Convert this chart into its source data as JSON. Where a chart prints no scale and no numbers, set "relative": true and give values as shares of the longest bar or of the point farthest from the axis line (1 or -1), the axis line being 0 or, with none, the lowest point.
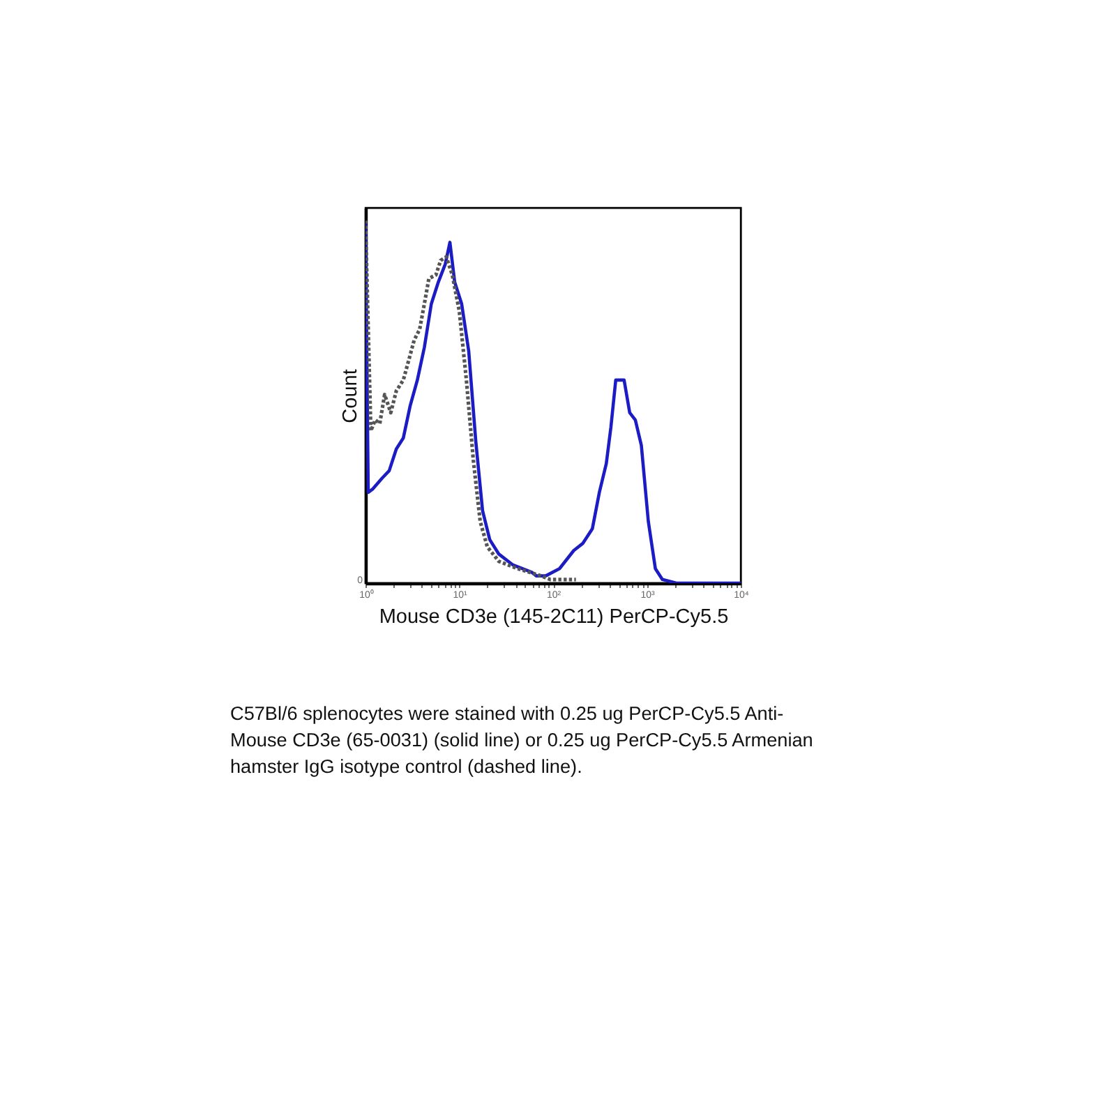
{
  "chart_data": {
    "type": "line",
    "relative": true,
    "log": "x",
    "xlabel": "Mouse CD3e (145-2C11) PerCP-Cy5.5",
    "ylabel": "Count",
    "xlim": [
      1,
      10000
    ],
    "xticks": [
      {
        "value": 1,
        "label": "10⁰"
      },
      {
        "value": 2,
        "label": null
      },
      {
        "value": 3,
        "label": null
      },
      {
        "value": 4,
        "label": null
      },
      {
        "value": 5,
        "label": null
      },
      {
        "value": 6,
        "label": null
      },
      {
        "value": 7,
        "label": null
      },
      {
        "value": 8,
        "label": null
      },
      {
        "value": 9,
        "label": null
      },
      {
        "value": 10,
        "label": "10¹"
      },
      {
        "value": 20,
        "label": null
      },
      {
        "value": 30,
        "label": null
      },
      {
        "value": 40,
        "label": null
      },
      {
        "value": 50,
        "label": null
      },
      {
        "value": 60,
        "label": null
      },
      {
        "value": 70,
        "label": null
      },
      {
        "value": 80,
        "label": null
      },
      {
        "value": 90,
        "label": null
      },
      {
        "value": 100,
        "label": "10²"
      },
      {
        "value": 200,
        "label": null
      },
      {
        "value": 300,
        "label": null
      },
      {
        "value": 400,
        "label": null
      },
      {
        "value": 500,
        "label": null
      },
      {
        "value": 600,
        "label": null
      },
      {
        "value": 700,
        "label": null
      },
      {
        "value": 800,
        "label": null
      },
      {
        "value": 900,
        "label": null
      },
      {
        "value": 1000,
        "label": "10³"
      },
      {
        "value": 2000,
        "label": null
      },
      {
        "value": 3000,
        "label": null
      },
      {
        "value": 4000,
        "label": null
      },
      {
        "value": 5000,
        "label": null
      },
      {
        "value": 6000,
        "label": null
      },
      {
        "value": 7000,
        "label": null
      },
      {
        "value": 8000,
        "label": null
      },
      {
        "value": 9000,
        "label": null
      },
      {
        "value": 10000,
        "label": "10⁴"
      }
    ],
    "series": [
      {
        "color": "#1c1cc4",
        "line_style": "solid",
        "x": [
          1,
          1.07,
          1.2,
          1.51,
          1.79,
          2.13,
          2.53,
          3.0,
          3.57,
          4.24,
          5.03,
          5.97,
          7.09,
          7.94,
          8.93,
          10.6,
          12.6,
          15.0,
          17.7,
          21.1,
          26.4,
          37.3,
          59.1,
          66.2,
          83.4,
          117,
          166,
          208,
          262,
          311,
          369,
          413,
          465,
          571,
          655,
          752,
          872,
          1035,
          1230,
          1460,
          2060,
          10000
        ],
        "values": [
          0.99,
          0.25,
          0.26,
          0.29,
          0.31,
          0.37,
          0.4,
          0.49,
          0.56,
          0.65,
          0.77,
          0.83,
          0.88,
          0.94,
          0.83,
          0.77,
          0.64,
          0.39,
          0.2,
          0.12,
          0.08,
          0.05,
          0.03,
          0.02,
          0.02,
          0.04,
          0.09,
          0.11,
          0.15,
          0.25,
          0.33,
          0.43,
          0.56,
          0.56,
          0.47,
          0.45,
          0.38,
          0.17,
          0.04,
          0.01,
          0,
          0
        ]
      },
      {
        "color": "#555555",
        "line_style": "dotted",
        "x": [
          1,
          1.14,
          1.27,
          1.42,
          1.6,
          1.86,
          2.13,
          2.53,
          3.0,
          3.3,
          3.78,
          4.24,
          4.74,
          5.63,
          6.33,
          7.26,
          8.42,
          10,
          11.9,
          14.1,
          16.7,
          19.9,
          26.4,
          41.9,
          74.1,
          93.3,
          175
        ],
        "values": [
          1,
          0.42,
          0.45,
          0.44,
          0.52,
          0.47,
          0.53,
          0.56,
          0.63,
          0.67,
          0.7,
          0.77,
          0.84,
          0.85,
          0.89,
          0.9,
          0.85,
          0.75,
          0.56,
          0.34,
          0.17,
          0.1,
          0.06,
          0.04,
          0.02,
          0.01,
          0.01
        ]
      }
    ],
    "annotations": [
      "0",
      "C57Bl/6 splenocytes were stained with 0.25 ug PerCP-Cy5.5 Anti-Mouse CD3e (65-0031) (solid line) or 0.25 ug PerCP-Cy5.5 Armenian hamster IgG isotype control (dashed line)."
    ]
  }
}
